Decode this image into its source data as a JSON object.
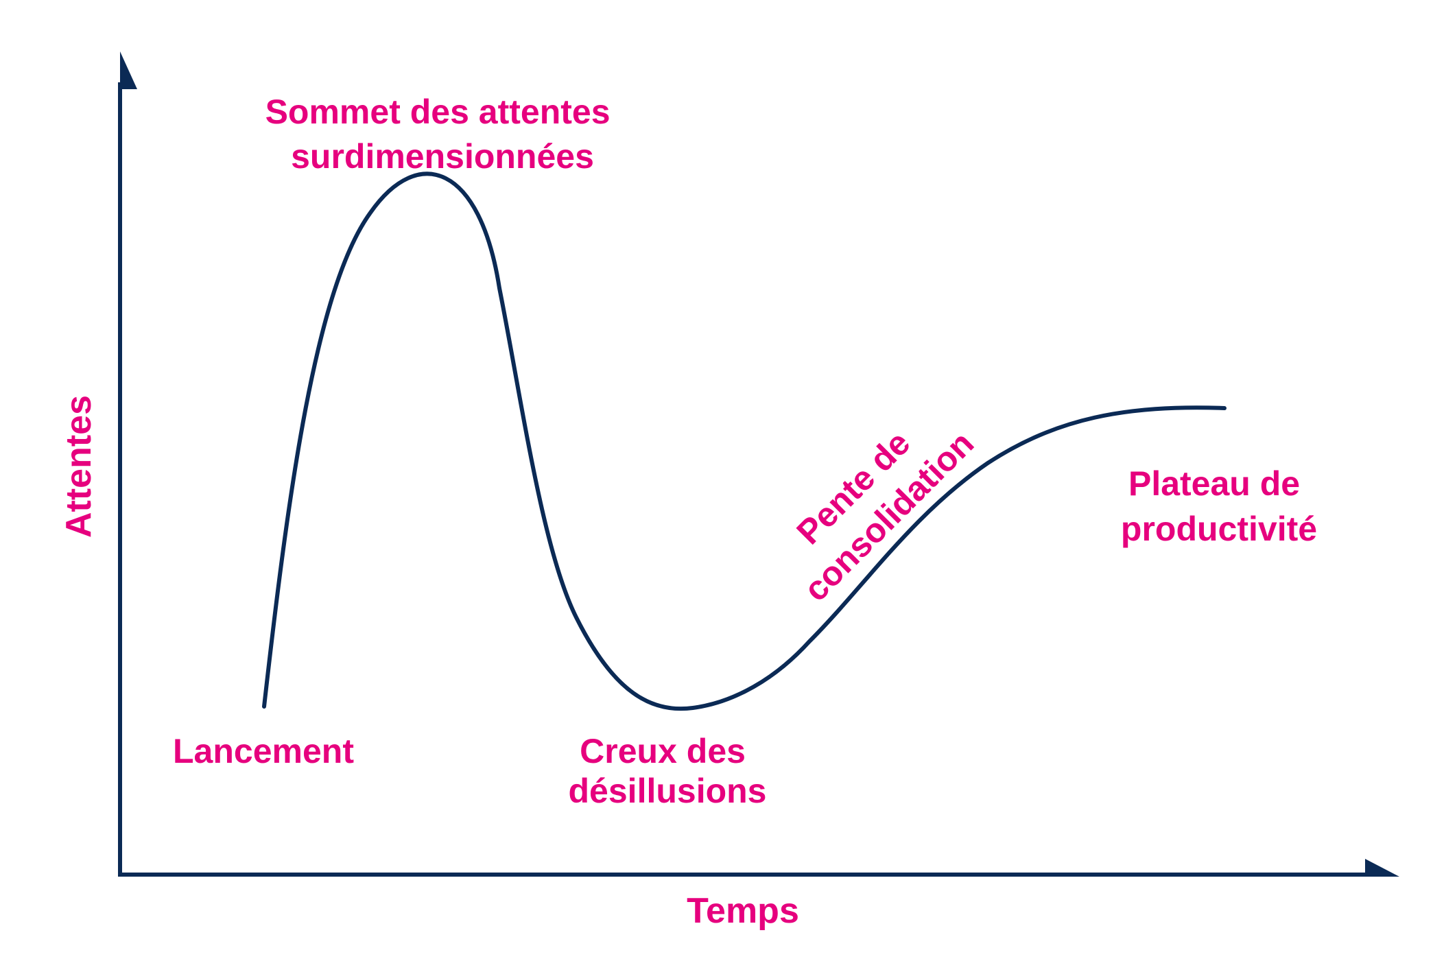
{
  "colors": {
    "label": "#e6007e",
    "axis": "#0b2a55",
    "curve": "#0b2a55",
    "background": "#ffffff"
  },
  "axes": {
    "y_label": "Attentes",
    "x_label": "Temps"
  },
  "phases": {
    "launch": [
      "Lancement"
    ],
    "peak": [
      "Sommet des attentes",
      "surdimensionnées"
    ],
    "trough": [
      "Creux des",
      "désillusions"
    ],
    "slope": [
      "Pente de",
      "consolidation"
    ],
    "plateau": [
      "Plateau de",
      "productivité"
    ]
  }
}
